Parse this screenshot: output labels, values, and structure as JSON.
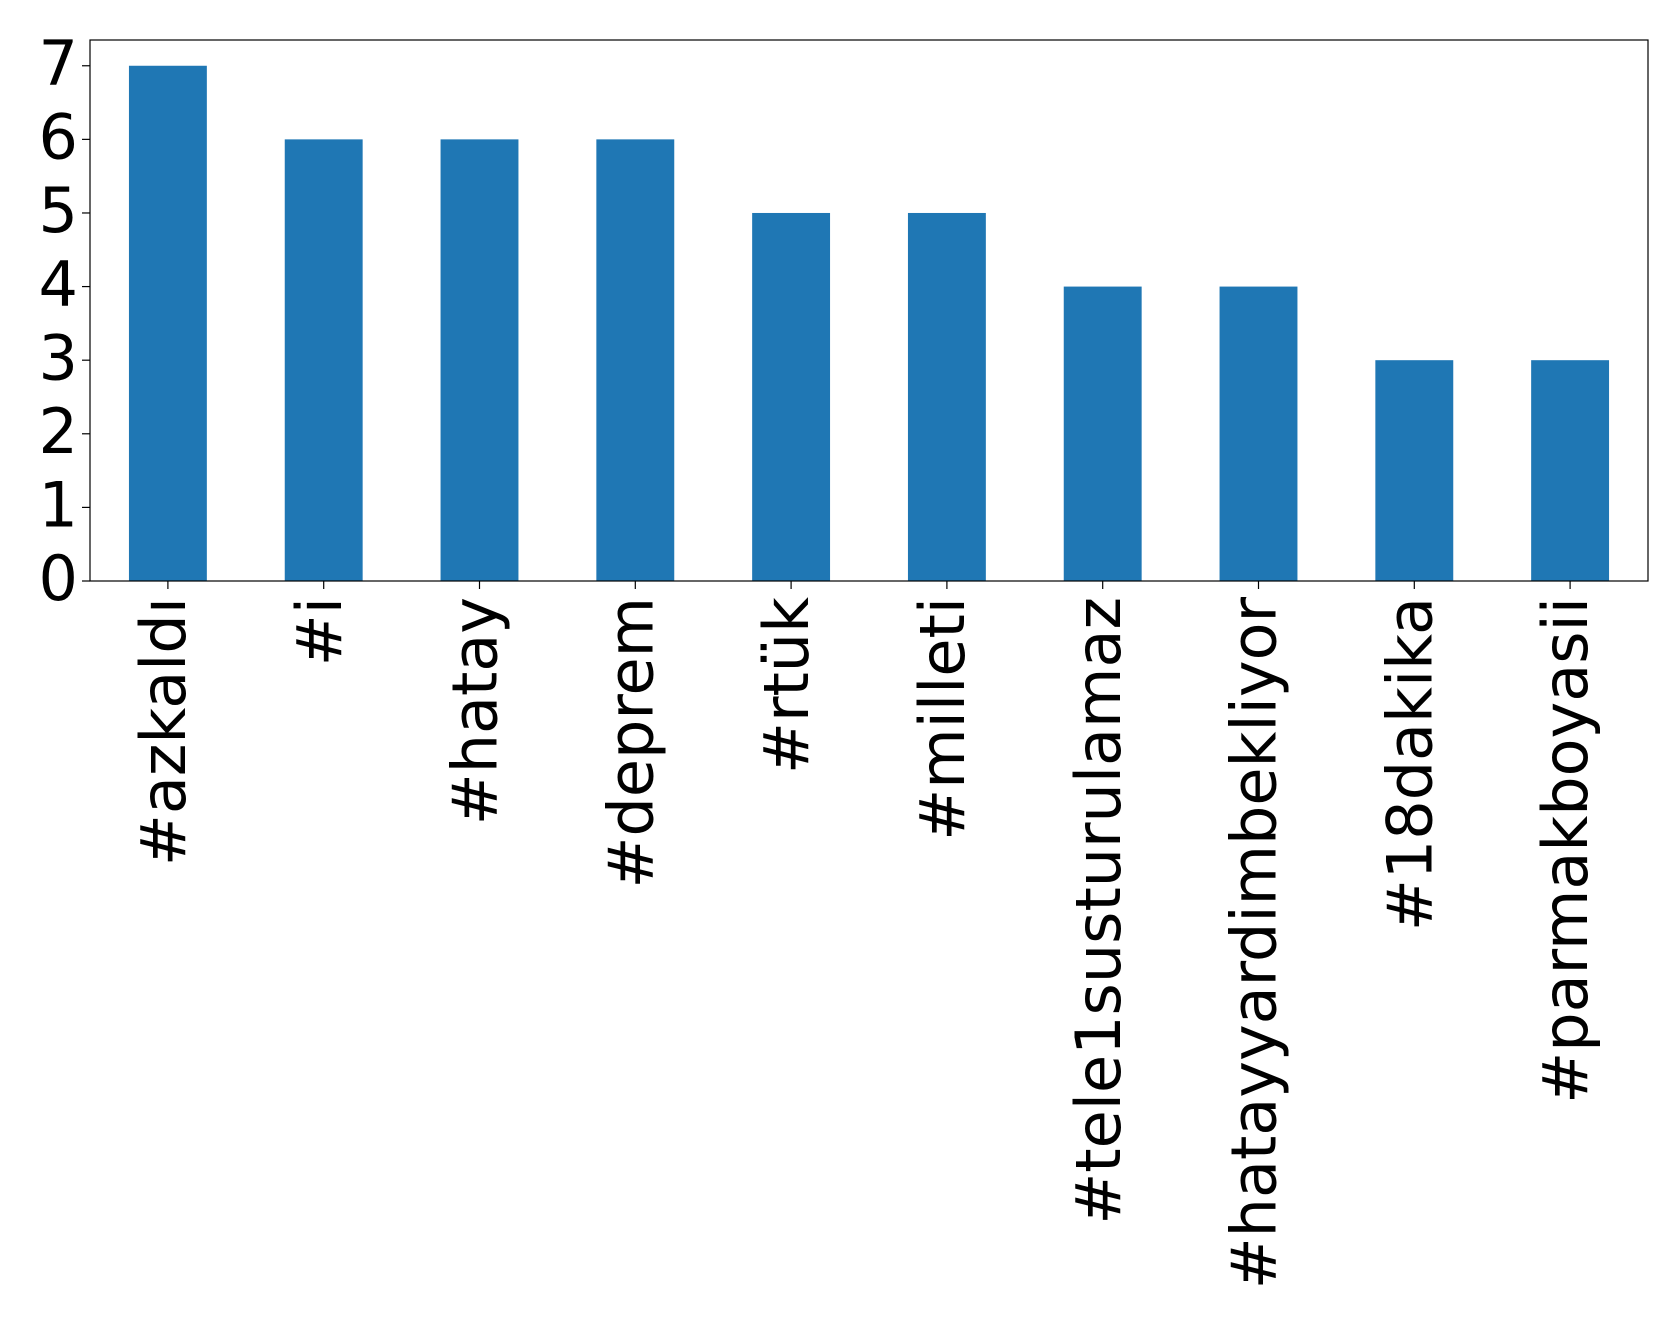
{
  "chart_data": {
    "type": "bar",
    "categories": [
      "#azkaldı",
      "#i",
      "#hatay",
      "#deprem",
      "#rtük",
      "#milleti",
      "#tele1susturulamaz",
      "#hatayyardimbekliyor",
      "#18dakika",
      "#parmakboyasii"
    ],
    "values": [
      7,
      6,
      6,
      6,
      5,
      5,
      4,
      4,
      3,
      3
    ],
    "color": "#1f77b4",
    "ylim": [
      0,
      7.35
    ],
    "yticks": [
      0,
      1,
      2,
      3,
      4,
      5,
      6,
      7
    ],
    "grid": false
  }
}
